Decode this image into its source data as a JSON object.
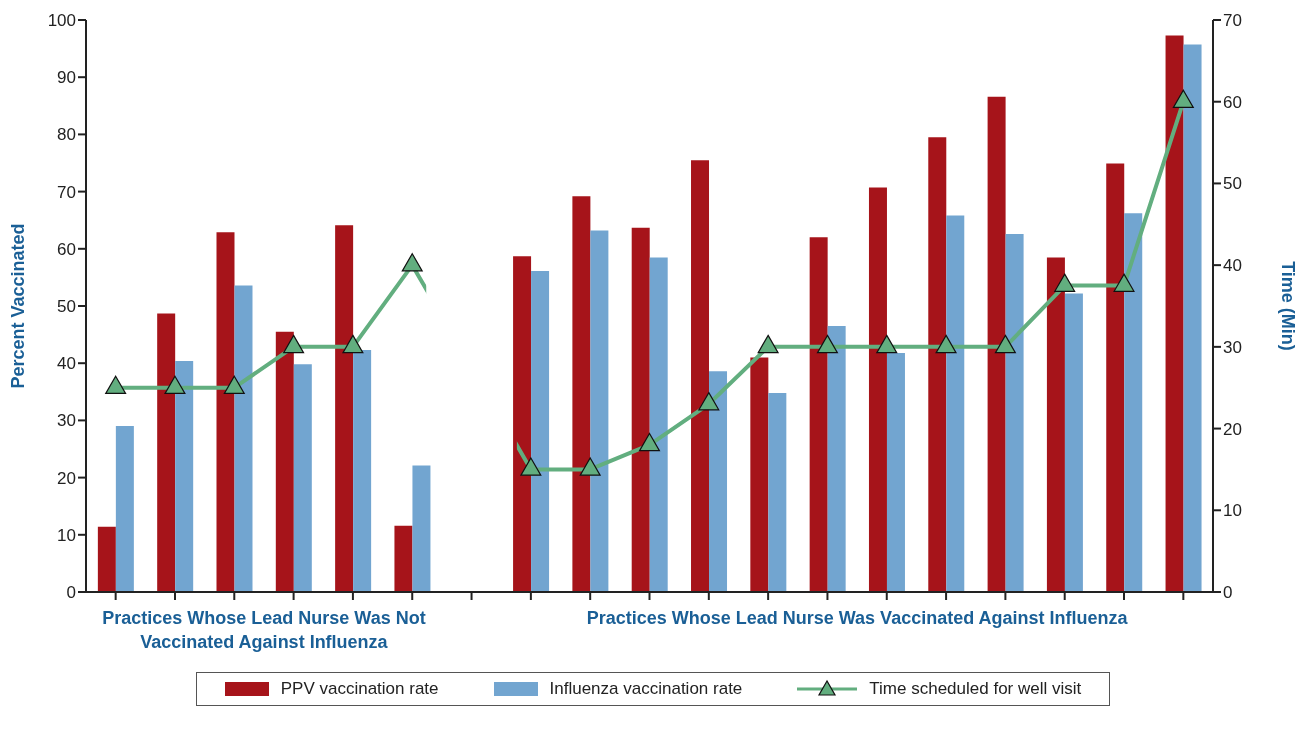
{
  "chart_data": {
    "type": "bar",
    "ylabel": "Percent Vaccinated",
    "y2label": "Time (Min)",
    "categories": [
      null,
      null,
      null,
      null,
      null,
      null,
      null,
      null,
      null,
      null,
      null,
      null,
      null,
      null,
      null,
      null,
      null,
      null,
      null
    ],
    "series": [
      {
        "name": "PPV vaccination rate",
        "color": "#a6141a",
        "values": [
          11.4,
          48.7,
          62.9,
          45.5,
          64.1,
          11.6,
          null,
          58.7,
          69.2,
          63.7,
          75.5,
          41.0,
          62.0,
          70.7,
          79.5,
          86.6,
          58.5,
          74.9,
          97.3
        ]
      },
      {
        "name": "Influenza vaccination rate",
        "color": "#72a5d0",
        "values": [
          29.0,
          40.4,
          53.6,
          39.8,
          42.3,
          22.1,
          null,
          56.1,
          63.2,
          58.5,
          38.6,
          34.8,
          46.5,
          41.8,
          65.8,
          62.6,
          52.2,
          66.2,
          95.7
        ]
      },
      {
        "name": "Time scheduled for well visit",
        "type": "line",
        "axis": "y2",
        "color": "#62ae7f",
        "marker": "triangle",
        "line_style": "solid",
        "values": [
          25,
          25,
          25,
          30,
          30,
          40,
          null,
          15,
          15,
          18,
          23,
          30,
          30,
          30,
          30,
          30,
          37.5,
          37.5,
          60
        ]
      }
    ],
    "ylim": [
      0,
      100
    ],
    "yticks": [
      0,
      10,
      20,
      30,
      40,
      50,
      60,
      70,
      80,
      90,
      100
    ],
    "y2lim": [
      0,
      70
    ],
    "y2ticks": [
      0,
      10,
      20,
      30,
      40,
      50,
      60,
      70
    ],
    "annotations": [
      "Practices Whose Lead Nurse Was Not Vaccinated Against Influenza",
      "Practices Whose Lead Nurse Was Vaccinated Against Influenza"
    ],
    "grid": false,
    "legend": "bottom"
  }
}
